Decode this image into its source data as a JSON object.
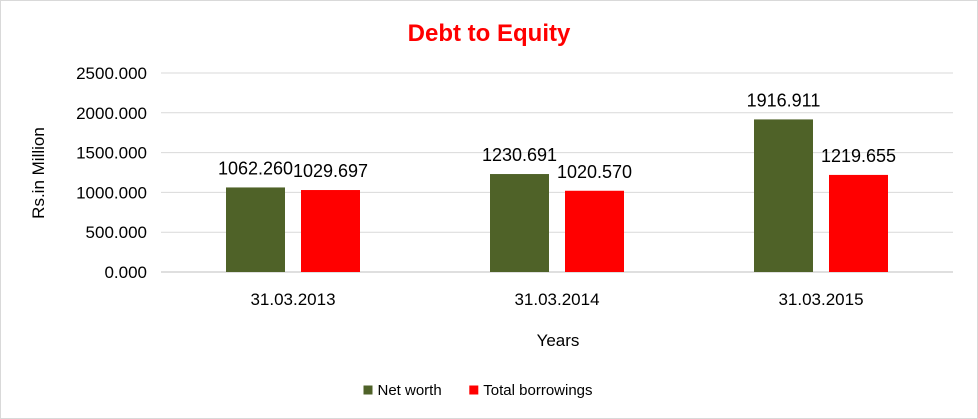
{
  "chart_data": {
    "type": "bar",
    "title": "Debt to Equity",
    "title_color": "#ff0000",
    "xlabel": "Years",
    "ylabel": "Rs.in Million",
    "categories": [
      "31.03.2013",
      "31.03.2014",
      "31.03.2015"
    ],
    "ylim": [
      0,
      2500
    ],
    "yticks": [
      "0.000",
      "500.000",
      "1000.000",
      "1500.000",
      "2000.000",
      "2500.000"
    ],
    "grid": true,
    "legend_position": "bottom",
    "series": [
      {
        "name": "Net worth",
        "color": "#4f6228",
        "values": [
          1062.26,
          1230.691,
          1916.911
        ],
        "labels": [
          "1062.260",
          "1230.691",
          "1916.911"
        ]
      },
      {
        "name": "Total borrowings",
        "color": "#ff0000",
        "values": [
          1029.697,
          1020.57,
          1219.655
        ],
        "labels": [
          "1029.697",
          "1020.570",
          "1219.655"
        ]
      }
    ]
  }
}
